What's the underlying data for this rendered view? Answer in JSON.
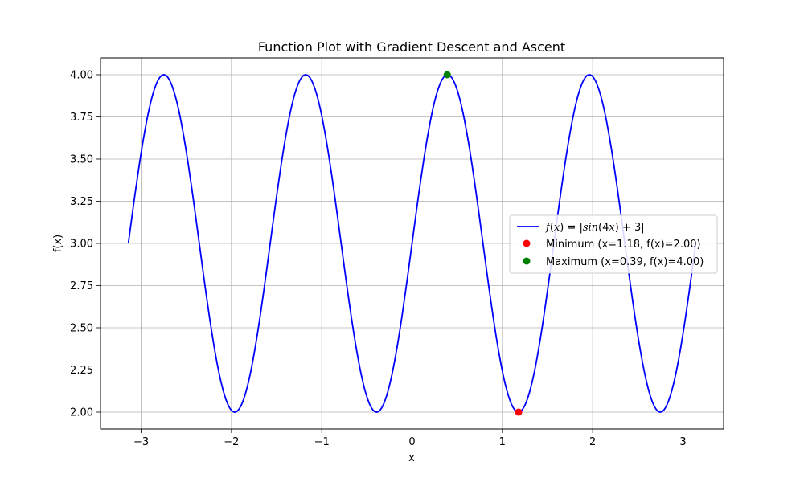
{
  "chart_data": {
    "type": "line",
    "title": "Function Plot with Gradient Descent and Ascent",
    "xlabel": "x",
    "ylabel": "f(x)",
    "xlim": [
      -3.45,
      3.45
    ],
    "ylim": [
      1.9,
      4.1
    ],
    "xticks": [
      -3,
      -2,
      -1,
      0,
      1,
      2,
      3
    ],
    "xtick_labels": [
      "−3",
      "−2",
      "−1",
      "0",
      "1",
      "2",
      "3"
    ],
    "yticks": [
      2.0,
      2.25,
      2.5,
      2.75,
      3.0,
      3.25,
      3.5,
      3.75,
      4.0
    ],
    "ytick_labels": [
      "2.00",
      "2.25",
      "2.50",
      "2.75",
      "3.00",
      "3.25",
      "3.50",
      "3.75",
      "4.00"
    ],
    "grid": true,
    "legend_position": "center-right",
    "series": [
      {
        "name": "f(x) = |sin(4x) + 3|",
        "function": "abs(sin(4x) + 3)",
        "x_range": [
          -3.14159,
          3.14159
        ],
        "color": "#0000ff"
      }
    ],
    "points": [
      {
        "name": "Minimum (x=1.18, f(x)=2.00)",
        "x": 1.18,
        "y": 2.0,
        "color": "#ff0000"
      },
      {
        "name": "Maximum (x=0.39, f(x)=4.00)",
        "x": 0.39,
        "y": 4.0,
        "color": "#008000"
      }
    ]
  }
}
